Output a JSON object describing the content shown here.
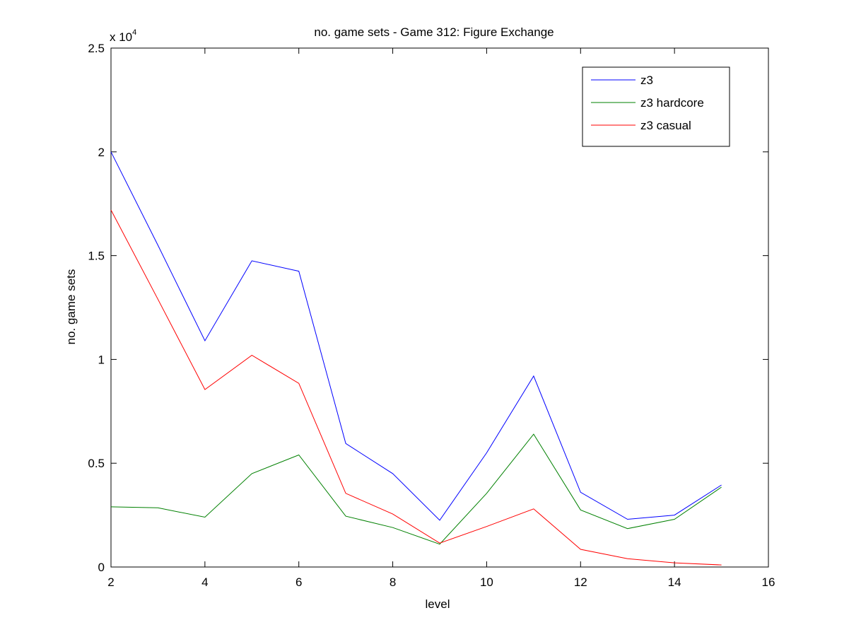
{
  "chart_data": {
    "type": "line",
    "title": "no. game sets - Game 312: Figure Exchange",
    "xlabel": "level",
    "ylabel": "no. game sets",
    "exponent_label": "x 10",
    "exponent_power": "4",
    "xlim": [
      2,
      16
    ],
    "ylim": [
      0,
      25000
    ],
    "xticks": [
      2,
      4,
      6,
      8,
      10,
      12,
      14,
      16
    ],
    "xtick_labels": [
      "2",
      "4",
      "6",
      "8",
      "10",
      "12",
      "14",
      "16"
    ],
    "yticks": [
      0,
      5000,
      10000,
      15000,
      20000,
      25000
    ],
    "ytick_labels": [
      "0",
      "0.5",
      "1",
      "1.5",
      "2",
      "2.5"
    ],
    "grid": false,
    "legend_position": "top-right",
    "x": [
      2,
      3,
      4,
      5,
      6,
      7,
      8,
      9,
      10,
      11,
      12,
      13,
      14,
      15
    ],
    "series": [
      {
        "name": "z3",
        "color": "#0000ff",
        "values": [
          20000,
          15500,
          10900,
          14750,
          14250,
          5950,
          4500,
          2250,
          5500,
          9200,
          3600,
          2300,
          2500,
          3950
        ]
      },
      {
        "name": "z3 hardcore",
        "color": "#008000",
        "values": [
          2900,
          2850,
          2400,
          4500,
          5400,
          2450,
          1900,
          1100,
          3550,
          6400,
          2750,
          1850,
          2300,
          3850
        ]
      },
      {
        "name": "z3 casual",
        "color": "#ff0000",
        "values": [
          17200,
          12900,
          8550,
          10200,
          8850,
          3550,
          2550,
          1150,
          1950,
          2800,
          850,
          400,
          200,
          100
        ]
      }
    ]
  }
}
